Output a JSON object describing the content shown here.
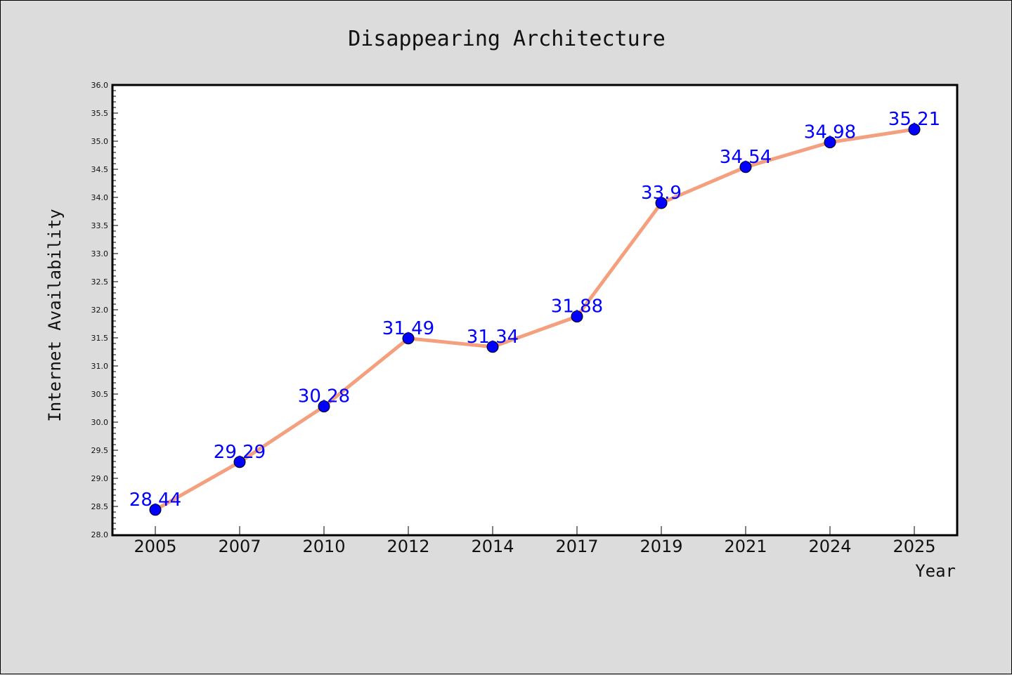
{
  "chart_data": {
    "type": "line",
    "title": "Disappearing Architecture",
    "xlabel": "Year",
    "ylabel": "Internet Availability",
    "categories": [
      "2005",
      "2007",
      "2010",
      "2012",
      "2014",
      "2017",
      "2019",
      "2021",
      "2024",
      "2025"
    ],
    "series": [
      {
        "values": [
          28.44,
          29.29,
          30.28,
          31.49,
          31.34,
          31.88,
          33.9,
          34.54,
          34.98,
          35.21
        ]
      }
    ],
    "data_labels": [
      "28.44",
      "29.29",
      "30.28",
      "31.49",
      "31.34",
      "31.88",
      "33.9",
      "34.54",
      "34.98",
      "35.21"
    ],
    "ylim": [
      28.0,
      36.0
    ],
    "yticks": [
      "28.0",
      "28.5",
      "29.0",
      "29.5",
      "30.0",
      "30.5",
      "31.0",
      "31.5",
      "32.0",
      "32.5",
      "33.0",
      "33.5",
      "34.0",
      "34.5",
      "35.0",
      "35.5",
      "36.0"
    ],
    "grid": false,
    "colors": {
      "line": "#f4a07f",
      "marker": "#0000ff",
      "label": "#0000ff",
      "plot_background": "#ffffff",
      "figure_background": "#dcdcdc"
    }
  }
}
